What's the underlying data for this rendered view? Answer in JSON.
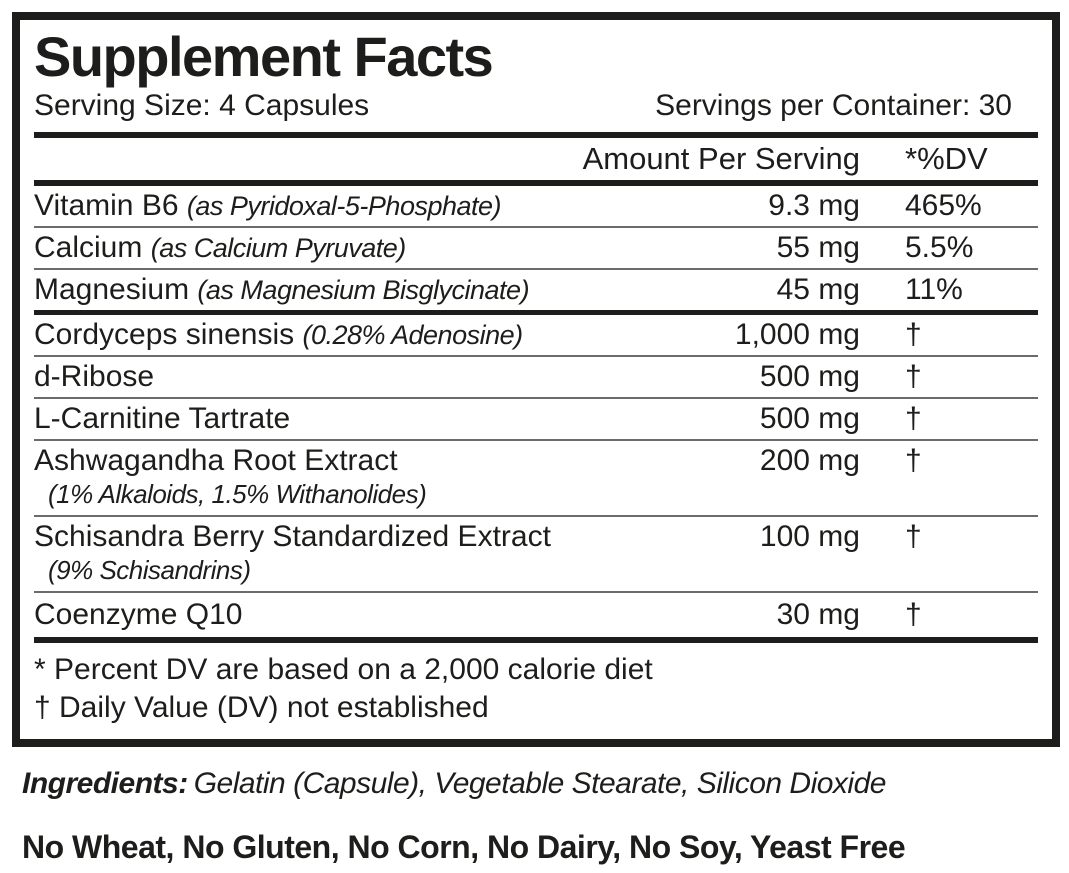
{
  "label": {
    "title": "Supplement Facts",
    "serving_size": "Serving Size: 4 Capsules",
    "servings_per_container": "Servings per Container: 30",
    "columns": {
      "amount": "Amount Per Serving",
      "dv": "*%DV"
    },
    "rows": [
      {
        "name": "Vitamin B6",
        "detail": "(as Pyridoxal-5-Phosphate)",
        "amount": "9.3 mg",
        "dv": "465%"
      },
      {
        "name": "Calcium",
        "detail": "(as Calcium Pyruvate)",
        "amount": "55 mg",
        "dv": "5.5%"
      },
      {
        "name": "Magnesium",
        "detail": "(as Magnesium Bisglycinate)",
        "amount": "45 mg",
        "dv": "11%"
      },
      {
        "name": "Cordyceps sinensis",
        "detail": "(0.28% Adenosine)",
        "amount": "1,000 mg",
        "dv": "†"
      },
      {
        "name": "d-Ribose",
        "detail": "",
        "amount": "500 mg",
        "dv": "†"
      },
      {
        "name": "L-Carnitine Tartrate",
        "detail": "",
        "amount": "500 mg",
        "dv": "†"
      },
      {
        "name": "Ashwagandha Root Extract",
        "detail": "",
        "sub": "(1% Alkaloids, 1.5% Withanolides)",
        "amount": "200 mg",
        "dv": "†"
      },
      {
        "name": "Schisandra Berry Standardized Extract",
        "detail": "",
        "sub": "(9% Schisandrins)",
        "amount": "100 mg",
        "dv": "†"
      },
      {
        "name": "Coenzyme Q10",
        "detail": "",
        "amount": "30 mg",
        "dv": "†"
      }
    ],
    "footnotes": [
      "* Percent DV are based on a 2,000 calorie diet",
      "† Daily Value (DV) not established"
    ]
  },
  "ingredients": {
    "label": "Ingredients:",
    "text": "Gelatin (Capsule), Vegetable Stearate, Silicon Dioxide"
  },
  "allergen_statement": "No Wheat, No Gluten, No Corn, No Dairy, No Soy, Yeast Free",
  "colors": {
    "text": "#1d1d1b",
    "background": "#ffffff",
    "thin_rule": "#6b6b6b"
  }
}
